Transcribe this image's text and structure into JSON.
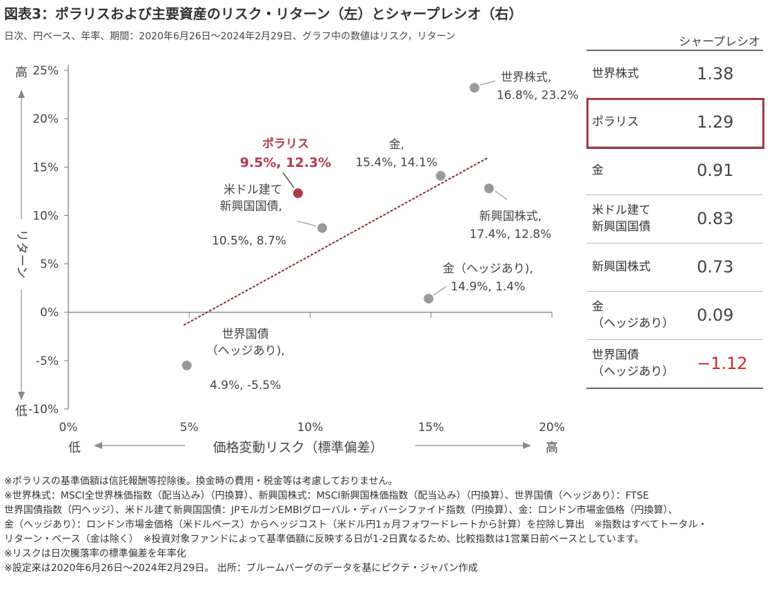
{
  "header": {
    "title": "図表3：ポラリスおよび主要資産のリスク・リターン（左）とシャープレシオ（右）",
    "subtitle": "日次、円ベース、年率、期間：2020年6月26日～2024年2月29日、グラフ中の数値はリスク，リターン"
  },
  "chart_data": {
    "type": "scatter",
    "xlabel": "価格変動リスク（標準偏差）",
    "ylabel": "リターン",
    "x_low_label": "低",
    "x_high_label": "高",
    "y_high_label": "高",
    "y_low_label": "低",
    "xlim": [
      0,
      20
    ],
    "ylim": [
      -10,
      25
    ],
    "x_ticks": [
      0,
      5,
      10,
      15,
      20
    ],
    "x_tick_labels": [
      "0%",
      "5%",
      "10%",
      "15%",
      "20%"
    ],
    "y_ticks": [
      -10,
      -5,
      0,
      5,
      10,
      15,
      20,
      25
    ],
    "y_tick_labels": [
      "-10%",
      "-5%",
      "0%",
      "5%",
      "10%",
      "15%",
      "20%",
      "25%"
    ],
    "trendline": {
      "from": [
        4.8,
        -1.3
      ],
      "to": [
        17.3,
        15.9
      ],
      "color": "#8a3a3a"
    },
    "colors": {
      "point": "#9a9a9a",
      "highlight": "#b03a48",
      "text": "#444444"
    },
    "points": [
      {
        "name_lines": [
          "世界株式,"
        ],
        "value_label": "16.8%, 23.2%",
        "x": 16.8,
        "y": 23.2
      },
      {
        "name_lines": [
          "ポラリス"
        ],
        "value_label": "9.5%, 12.3%",
        "x": 9.5,
        "y": 12.3,
        "highlight": true
      },
      {
        "name_lines": [
          "金,"
        ],
        "value_label": "15.4%, 14.1%",
        "x": 15.4,
        "y": 14.1
      },
      {
        "name_lines": [
          "米ドル建て",
          "新興国国債,"
        ],
        "value_label": "10.5%, 8.7%",
        "x": 10.5,
        "y": 8.7
      },
      {
        "name_lines": [
          "新興国株式,"
        ],
        "value_label": "17.4%, 12.8%",
        "x": 17.4,
        "y": 12.8
      },
      {
        "name_lines": [
          "金（ヘッジあり),"
        ],
        "value_label": "14.9%, 1.4%",
        "x": 14.9,
        "y": 1.4
      },
      {
        "name_lines": [
          "世界国債",
          "（ヘッジあり),"
        ],
        "value_label": "4.9%, -5.5%",
        "x": 4.9,
        "y": -5.5
      }
    ]
  },
  "sharpe_table": {
    "header": "シャープレシオ",
    "rows": [
      {
        "name_lines": [
          "世界株式"
        ],
        "value": "1.38"
      },
      {
        "name_lines": [
          "ポラリス"
        ],
        "value": "1.29",
        "highlight": true
      },
      {
        "name_lines": [
          "金"
        ],
        "value": "0.91"
      },
      {
        "name_lines": [
          "米ドル建て",
          "新興国国債"
        ],
        "value": "0.83"
      },
      {
        "name_lines": [
          "新興国株式"
        ],
        "value": "0.73"
      },
      {
        "name_lines": [
          "金",
          "（ヘッジあり）"
        ],
        "value": "0.09"
      },
      {
        "name_lines": [
          "世界国債",
          "（ヘッジあり）"
        ],
        "value": "−1.12",
        "negative": true
      }
    ]
  },
  "notes": [
    "※ポラリスの基準価額は信託報酬等控除後。換金時の費用・税金等は考慮しておりません。",
    "※世界株式：MSCI全世界株価指数（配当込み）（円換算）、新興国株式：MSCI新興国株価指数（配当込み）（円換算）、世界国債（ヘッジあり）：FTSE",
    "世界国債指数（円ヘッジ）、米ドル建て新興国国債：JPモルガンEMBIグローバル・ディバーシファイド指数（円換算）、金：ロンドン市場金価格（円換算）、",
    "金（ヘッジあり）：ロンドン市場金価格（米ドルベース）からヘッジコスト（米ドル円1ヵ月フォワードレートから計算）を控除し算出　※指数はすべてトータル・",
    "リターン・ベース（金は除く）　※投資対象ファンドによって基準価額に反映する日が1-2日異なるため、比較指数は1営業日前ベースとしています。",
    "※リスクは日次騰落率の標準偏差を年率化",
    "※設定来は2020年6月26日～2024年2月29日。 出所：ブルームバーグのデータを基にピクテ・ジャパン作成"
  ]
}
